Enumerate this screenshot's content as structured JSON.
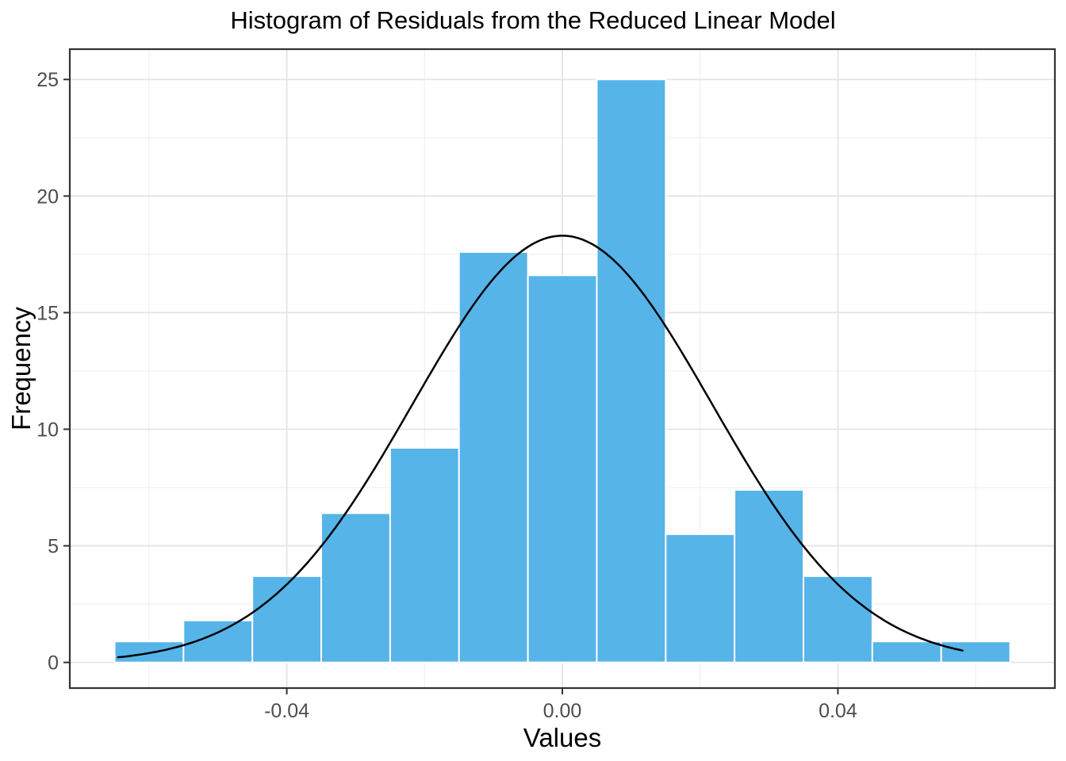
{
  "figure": {
    "title": "Histogram of Residuals from the Reduced Linear Model"
  },
  "chart_data": {
    "type": "bar",
    "subtype": "histogram-with-normal-density-curve",
    "title": "Histogram of Residuals from the Reduced Linear Model",
    "xlabel": "Values",
    "ylabel": "Frequency",
    "grid": "on",
    "legend": "none",
    "bin_width": 0.01,
    "bin_edges": [
      -0.065,
      -0.055,
      -0.045,
      -0.035,
      -0.025,
      -0.015,
      -0.005,
      0.005,
      0.015,
      0.025,
      0.035,
      0.045,
      0.055,
      0.065
    ],
    "frequencies": [
      0.9,
      1.8,
      3.7,
      6.4,
      9.2,
      17.6,
      16.6,
      25.0,
      5.5,
      7.4,
      3.7,
      0.9,
      0.9
    ],
    "x_ticks": [
      -0.04,
      0,
      0.04
    ],
    "x_tick_labels": [
      "-0.04",
      "0.00",
      "0.04"
    ],
    "y_ticks": [
      0,
      5,
      10,
      15,
      20,
      25
    ],
    "y_tick_labels": [
      "0",
      "5",
      "10",
      "15",
      "20",
      "25"
    ],
    "x_minor_gridlines": [
      -0.06,
      -0.02,
      0.02,
      0.06
    ],
    "y_minor_gridlines": [
      2.5,
      7.5,
      12.5,
      17.5,
      22.5
    ],
    "xlim": [
      -0.0715,
      0.0715
    ],
    "ylim": [
      -1.1,
      26.3
    ],
    "normal_curve": {
      "mean": 0,
      "sd": 0.0217,
      "peak_y": 18.3,
      "x_start": -0.0645,
      "x_end": 0.0581
    },
    "colors": {
      "bar_fill": "#56B4E9",
      "bar_border": "#FFFFFF",
      "curve": "#000000",
      "grid_major": "#E4E4E4",
      "grid_minor": "#F0F0F0",
      "panel_border": "#333333",
      "tick": "#333333",
      "tick_label": "#4D4D4D",
      "axis_title": "#000000",
      "title": "#000000",
      "background": "#FFFFFF"
    }
  }
}
